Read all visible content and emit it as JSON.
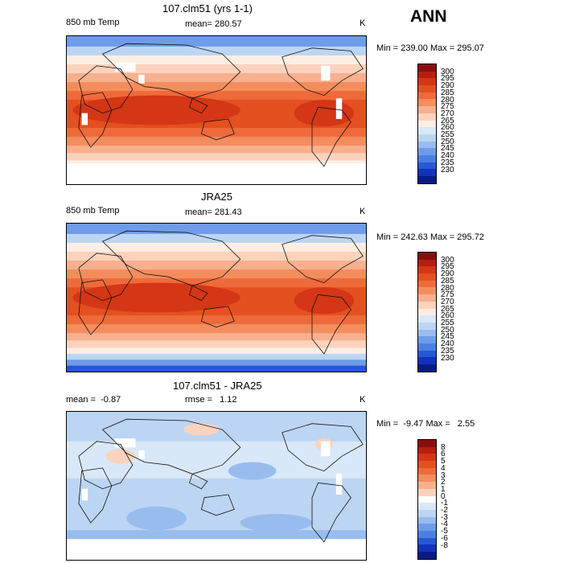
{
  "season": "ANN",
  "colors": {
    "abs": [
      "#8a0d0d",
      "#b81d12",
      "#d43616",
      "#e4501f",
      "#ef6a3a",
      "#f48d5e",
      "#f8b08e",
      "#fbd3bd",
      "#fdeee4",
      "#d9e8f8",
      "#bcd5f3",
      "#98bcee",
      "#6f9ce8",
      "#4c7fe2",
      "#2856d9",
      "#1231bd",
      "#071b87"
    ],
    "diff": [
      "#8a0d0d",
      "#b81d12",
      "#d43616",
      "#e4501f",
      "#ef6a3a",
      "#f48d5e",
      "#f8b08e",
      "#fbd3bd",
      "#ffffff",
      "#d9e8f8",
      "#bcd5f3",
      "#98bcee",
      "#6f9ce8",
      "#4c7fe2",
      "#2856d9",
      "#1231bd",
      "#071b87"
    ]
  },
  "panels": [
    {
      "title": "107.clm51 (yrs 1-1)",
      "left_label": "850 mb Temp",
      "center_label": "mean= 280.57",
      "units": "K",
      "minmax": "Min = 239.00 Max = 295.07",
      "colorbar_ticks": [
        "300",
        "295",
        "290",
        "285",
        "280",
        "275",
        "270",
        "265",
        "260",
        "255",
        "250",
        "245",
        "240",
        "235",
        "230"
      ],
      "map_color_scale": "abs",
      "masked": true
    },
    {
      "title": "JRA25",
      "left_label": "850 mb Temp",
      "center_label": "mean= 281.43",
      "units": "K",
      "minmax": "Min = 242.63 Max = 295.72",
      "colorbar_ticks": [
        "300",
        "295",
        "290",
        "285",
        "280",
        "275",
        "270",
        "265",
        "260",
        "255",
        "250",
        "245",
        "240",
        "235",
        "230"
      ],
      "map_color_scale": "abs",
      "masked": false
    },
    {
      "title": "107.clm51 - JRA25",
      "left_label": "mean =  -0.87",
      "center_label": "rmse =   1.12",
      "units": "K",
      "minmax": "Min =  -9.47 Max =   2.55",
      "colorbar_ticks": [
        "8",
        "6",
        "5",
        "4",
        "3",
        "2",
        "1",
        "0",
        "-1",
        "-2",
        "-3",
        "-4",
        "-5",
        "-6",
        "-8"
      ],
      "map_color_scale": "diff",
      "masked": true
    }
  ]
}
